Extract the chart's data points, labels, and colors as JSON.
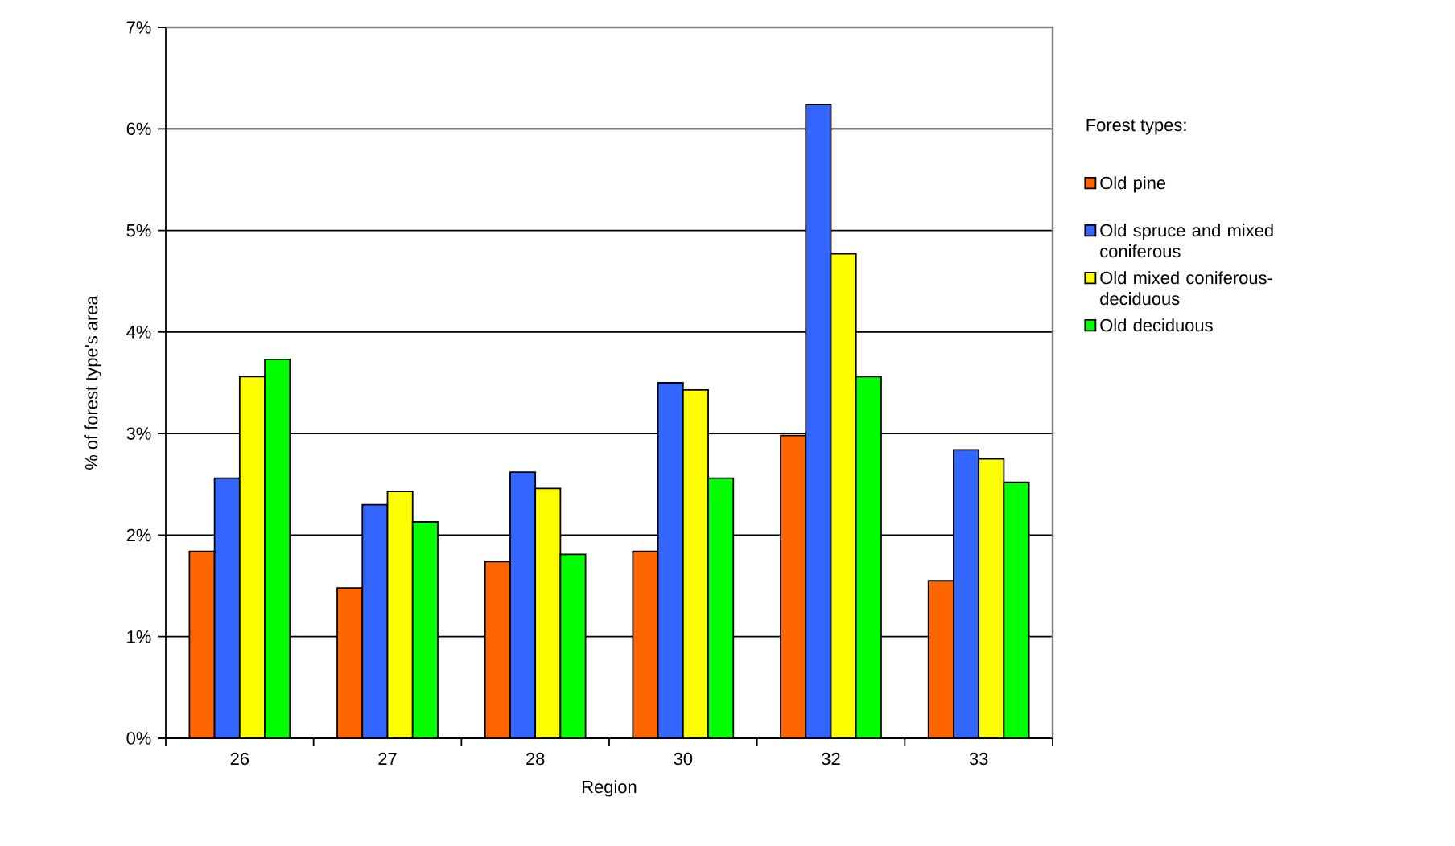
{
  "chart_data": {
    "type": "bar",
    "xlabel": "Region",
    "ylabel": "% of forest type's area",
    "legend_title": "Forest types:",
    "categories": [
      "26",
      "27",
      "28",
      "30",
      "32",
      "33"
    ],
    "series": [
      {
        "name": "Old pine",
        "color": "#ff6600",
        "values": [
          1.84,
          1.48,
          1.74,
          1.84,
          2.98,
          1.55
        ]
      },
      {
        "name": "Old spruce and mixed coniferous",
        "color": "#3366ff",
        "values": [
          2.56,
          2.3,
          2.62,
          3.5,
          6.24,
          2.84
        ]
      },
      {
        "name": "Old mixed coniferous-deciduous",
        "color": "#ffff00",
        "values": [
          3.56,
          2.43,
          2.46,
          3.43,
          4.77,
          2.75
        ]
      },
      {
        "name": "Old deciduous",
        "color": "#00ff00",
        "values": [
          3.73,
          2.13,
          1.81,
          2.56,
          3.56,
          2.52
        ]
      }
    ],
    "ylim": [
      0,
      7
    ],
    "yticks": [
      {
        "value": 0,
        "label": "0%"
      },
      {
        "value": 1,
        "label": "1%"
      },
      {
        "value": 2,
        "label": "2%"
      },
      {
        "value": 3,
        "label": "3%"
      },
      {
        "value": 4,
        "label": "4%"
      },
      {
        "value": 5,
        "label": "5%"
      },
      {
        "value": 6,
        "label": "6%"
      },
      {
        "value": 7,
        "label": "7%"
      }
    ],
    "grid": "y",
    "legend": "right"
  }
}
